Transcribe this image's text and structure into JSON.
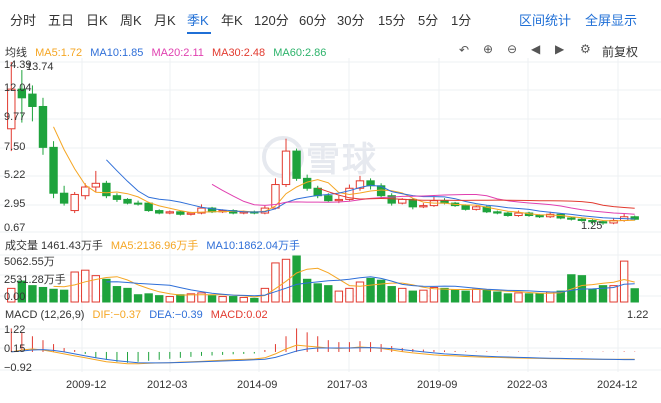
{
  "period_tabs": [
    {
      "label": "分时",
      "active": false
    },
    {
      "label": "五日",
      "active": false
    },
    {
      "label": "日K",
      "active": false
    },
    {
      "label": "周K",
      "active": false
    },
    {
      "label": "月K",
      "active": false
    },
    {
      "label": "季K",
      "active": true
    },
    {
      "label": "年K",
      "active": false
    },
    {
      "label": "120分",
      "active": false
    },
    {
      "label": "60分",
      "active": false
    },
    {
      "label": "30分",
      "active": false
    },
    {
      "label": "15分",
      "active": false
    },
    {
      "label": "5分",
      "active": false
    },
    {
      "label": "1分",
      "active": false
    }
  ],
  "links": {
    "range_stats": "区间统计",
    "fullscreen": "全屏显示"
  },
  "main_legend": {
    "title": "均线",
    "ma5": "MA5:1.72",
    "ma10": "MA10:1.85",
    "ma20": "MA20:2.11",
    "ma30": "MA30:2.48",
    "ma60": "MA60:2.86"
  },
  "toolbar": {
    "adjust": "前复权"
  },
  "watermark": "雪球",
  "price_axis": {
    "top": "14.39",
    "top2": "13.74",
    "l1": "12.04",
    "l2": "9.77",
    "l3": "7.50",
    "l4": "5.22",
    "l5": "2.95",
    "l6": "0.67",
    "low_marker": "1.25"
  },
  "volume_legend": {
    "title": "成交量 1461.43万手",
    "ma5": "MA5:2136.96万手",
    "ma10": "MA10:1862.04万手"
  },
  "volume_axis": {
    "top": "5062.55万",
    "mid": "2531.28万手",
    "zero": "0.00"
  },
  "macd_legend": {
    "title": "MACD (12,26,9)",
    "dif": "DIF:−0.37",
    "dea": "DEA:−0.39",
    "macd": "MACD:0.02"
  },
  "macd_axis": {
    "top": "1.22",
    "mid": "0.15",
    "low": "−0.92",
    "right_top": "1.22"
  },
  "time_axis": [
    "2009-12",
    "2012-03",
    "2014-09",
    "2017-03",
    "2019-09",
    "2022-03",
    "2024-12"
  ],
  "colors": {
    "up": "#e23a2f",
    "down": "#1ea33c",
    "ma5": "#f5a623",
    "ma10": "#2f6fd8",
    "ma20": "#e040b0",
    "ma30": "#e23a2f",
    "ma60": "#2db36b",
    "accent": "#1f6fd6"
  },
  "chart_data": {
    "type": "candlestick",
    "price_range": [
      0.67,
      14.39
    ],
    "candles": [
      [
        9.0,
        12.2,
        7.2,
        14.39,
        "up"
      ],
      [
        12.2,
        11.5,
        9.5,
        13.74,
        "down"
      ],
      [
        11.8,
        10.8,
        9.6,
        12.5,
        "down"
      ],
      [
        10.8,
        7.5,
        6.9,
        11.5,
        "down"
      ],
      [
        7.5,
        3.8,
        3.4,
        8.0,
        "down"
      ],
      [
        3.8,
        3.0,
        2.8,
        4.4,
        "down"
      ],
      [
        2.4,
        3.7,
        2.2,
        3.9,
        "up"
      ],
      [
        3.6,
        4.3,
        3.3,
        4.6,
        "up"
      ],
      [
        4.3,
        4.6,
        3.9,
        5.6,
        "up"
      ],
      [
        4.6,
        3.6,
        3.4,
        4.8,
        "down"
      ],
      [
        3.6,
        3.3,
        3.1,
        3.8,
        "down"
      ],
      [
        3.3,
        3.0,
        2.9,
        3.4,
        "down"
      ],
      [
        3.0,
        3.0,
        2.8,
        3.2,
        "down"
      ],
      [
        3.0,
        2.4,
        2.3,
        3.1,
        "down"
      ],
      [
        2.4,
        2.2,
        2.1,
        2.5,
        "down"
      ],
      [
        2.2,
        2.3,
        2.1,
        2.4,
        "up"
      ],
      [
        2.3,
        2.1,
        2.0,
        2.4,
        "down"
      ],
      [
        2.1,
        2.2,
        2.0,
        2.3,
        "up"
      ],
      [
        2.2,
        2.6,
        2.1,
        2.9,
        "up"
      ],
      [
        2.6,
        2.3,
        2.2,
        2.7,
        "down"
      ],
      [
        2.3,
        2.4,
        2.2,
        2.5,
        "up"
      ],
      [
        2.4,
        2.2,
        2.1,
        2.5,
        "down"
      ],
      [
        2.2,
        2.3,
        2.1,
        2.4,
        "up"
      ],
      [
        2.3,
        2.2,
        2.1,
        2.4,
        "down"
      ],
      [
        2.2,
        2.6,
        2.1,
        2.8,
        "up"
      ],
      [
        2.6,
        4.5,
        2.5,
        5.0,
        "up"
      ],
      [
        4.5,
        7.2,
        4.3,
        8.2,
        "up"
      ],
      [
        7.2,
        5.0,
        4.8,
        7.4,
        "down"
      ],
      [
        5.0,
        4.2,
        4.0,
        5.3,
        "down"
      ],
      [
        4.2,
        3.6,
        3.4,
        4.4,
        "down"
      ],
      [
        3.6,
        3.2,
        3.1,
        3.8,
        "down"
      ],
      [
        3.2,
        3.3,
        3.0,
        3.6,
        "up"
      ],
      [
        3.3,
        4.2,
        3.2,
        4.5,
        "up"
      ],
      [
        4.2,
        4.8,
        4.0,
        5.2,
        "up"
      ],
      [
        4.8,
        4.4,
        4.1,
        5.0,
        "down"
      ],
      [
        4.4,
        3.6,
        3.4,
        4.6,
        "down"
      ],
      [
        3.6,
        3.0,
        2.8,
        3.8,
        "down"
      ],
      [
        3.0,
        3.3,
        2.9,
        3.4,
        "up"
      ],
      [
        3.3,
        2.7,
        2.5,
        3.4,
        "down"
      ],
      [
        2.7,
        2.8,
        2.6,
        3.0,
        "up"
      ],
      [
        2.8,
        3.2,
        2.7,
        3.5,
        "up"
      ],
      [
        3.2,
        3.0,
        2.9,
        3.4,
        "down"
      ],
      [
        3.0,
        2.8,
        2.7,
        3.1,
        "down"
      ],
      [
        2.8,
        2.5,
        2.4,
        2.9,
        "down"
      ],
      [
        2.5,
        2.7,
        2.4,
        2.8,
        "up"
      ],
      [
        2.7,
        2.3,
        2.2,
        2.8,
        "down"
      ],
      [
        2.3,
        2.2,
        2.1,
        2.4,
        "down"
      ],
      [
        2.2,
        2.0,
        1.9,
        2.3,
        "down"
      ],
      [
        2.0,
        2.2,
        1.9,
        2.4,
        "up"
      ],
      [
        2.2,
        2.0,
        1.9,
        2.3,
        "down"
      ],
      [
        2.0,
        1.9,
        1.8,
        2.1,
        "down"
      ],
      [
        1.9,
        2.1,
        1.8,
        2.3,
        "up"
      ],
      [
        2.1,
        1.8,
        1.7,
        2.2,
        "down"
      ],
      [
        1.8,
        1.7,
        1.6,
        1.9,
        "down"
      ],
      [
        1.7,
        1.6,
        1.5,
        1.8,
        "down"
      ],
      [
        1.6,
        1.5,
        1.25,
        1.7,
        "down"
      ],
      [
        1.5,
        1.4,
        1.25,
        1.6,
        "down"
      ],
      [
        1.4,
        1.6,
        1.3,
        1.8,
        "up"
      ],
      [
        1.6,
        1.9,
        1.5,
        2.2,
        "up"
      ],
      [
        1.9,
        1.7,
        1.6,
        2.0,
        "down"
      ]
    ],
    "volumes": [
      1500,
      2300,
      1800,
      1600,
      1400,
      1300,
      3300,
      3500,
      2900,
      2500,
      1700,
      1500,
      800,
      900,
      700,
      600,
      800,
      900,
      1000,
      700,
      600,
      600,
      500,
      400,
      1500,
      4300,
      4700,
      5062,
      2500,
      2000,
      1800,
      1200,
      1500,
      2200,
      2600,
      2400,
      1700,
      1500,
      1200,
      1300,
      1600,
      1500,
      1300,
      1200,
      1400,
      1300,
      1100,
      900,
      1000,
      900,
      900,
      1100,
      1200,
      3000,
      2900,
      1400,
      1800,
      1800,
      4500,
      1461
    ],
    "macd": [
      1.2,
      1.0,
      0.8,
      0.6,
      0.4,
      0.2,
      0.1,
      -0.1,
      -0.3,
      -0.4,
      -0.5,
      -0.55,
      -0.5,
      -0.45,
      -0.4,
      -0.35,
      -0.3,
      -0.25,
      -0.2,
      -0.18,
      -0.15,
      -0.12,
      -0.1,
      -0.08,
      0.1,
      0.4,
      0.8,
      1.2,
      1.0,
      0.8,
      0.6,
      0.5,
      0.5,
      0.55,
      0.5,
      0.4,
      0.3,
      0.2,
      0.15,
      0.12,
      0.1,
      0.08,
      0.05,
      0.03,
      0.02,
      0.03,
      0.02,
      0.01,
      0.02,
      0.01,
      0.01,
      0.02,
      0.01,
      0.01,
      0.02,
      0.01,
      0.02,
      0.02,
      0.03,
      0.02
    ],
    "dif": [
      0.0,
      0.1,
      0.15,
      0.1,
      0.0,
      -0.1,
      -0.2,
      -0.3,
      -0.4,
      -0.5,
      -0.55,
      -0.6,
      -0.6,
      -0.58,
      -0.56,
      -0.55,
      -0.52,
      -0.5,
      -0.48,
      -0.45,
      -0.42,
      -0.4,
      -0.38,
      -0.36,
      -0.3,
      -0.1,
      0.15,
      0.35,
      0.3,
      0.25,
      0.2,
      0.18,
      0.2,
      0.25,
      0.22,
      0.18,
      0.1,
      0.02,
      -0.05,
      -0.1,
      -0.15,
      -0.18,
      -0.2,
      -0.23,
      -0.25,
      -0.27,
      -0.28,
      -0.3,
      -0.31,
      -0.32,
      -0.33,
      -0.34,
      -0.35,
      -0.36,
      -0.37,
      -0.38,
      -0.38,
      -0.38,
      -0.37,
      -0.37
    ],
    "dea": [
      0.0,
      0.05,
      0.1,
      0.12,
      0.08,
      0.0,
      -0.1,
      -0.2,
      -0.3,
      -0.38,
      -0.45,
      -0.5,
      -0.55,
      -0.56,
      -0.56,
      -0.55,
      -0.54,
      -0.52,
      -0.5,
      -0.48,
      -0.46,
      -0.44,
      -0.42,
      -0.4,
      -0.37,
      -0.28,
      -0.12,
      0.05,
      0.15,
      0.2,
      0.2,
      0.2,
      0.2,
      0.21,
      0.22,
      0.2,
      0.17,
      0.12,
      0.06,
      0.0,
      -0.05,
      -0.1,
      -0.13,
      -0.16,
      -0.19,
      -0.22,
      -0.24,
      -0.26,
      -0.28,
      -0.29,
      -0.31,
      -0.32,
      -0.33,
      -0.34,
      -0.35,
      -0.36,
      -0.37,
      -0.38,
      -0.39,
      -0.39
    ],
    "macd_range": [
      -0.92,
      1.22
    ]
  }
}
